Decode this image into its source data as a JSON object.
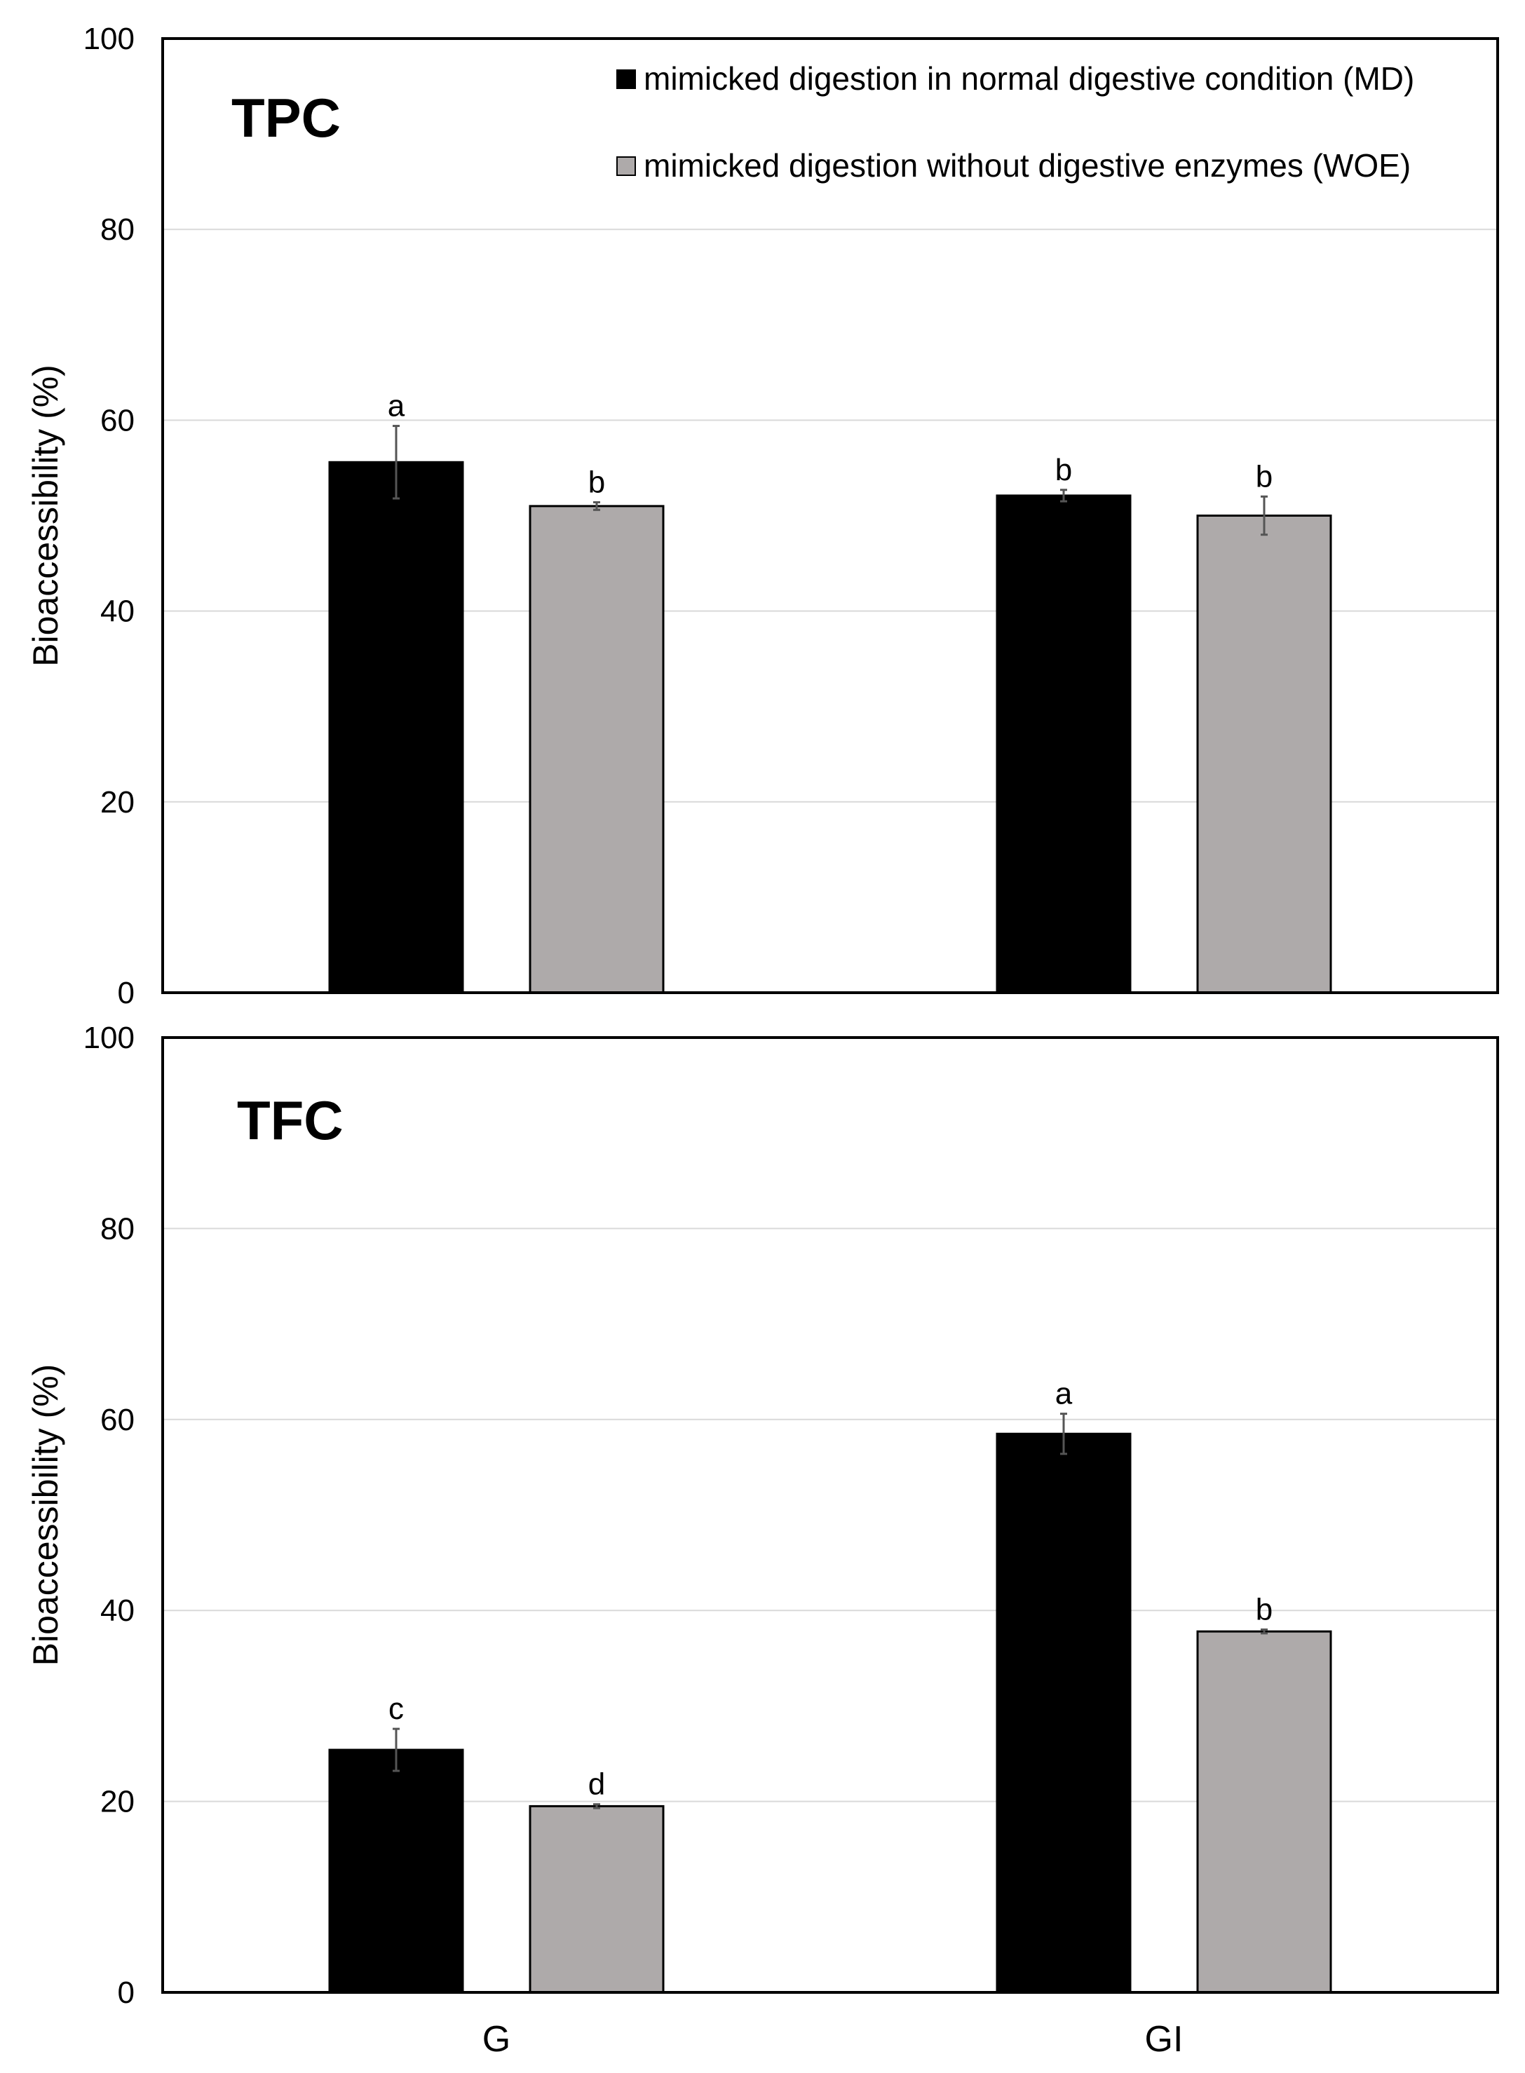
{
  "chart_data": [
    {
      "type": "bar",
      "panel_label": "TPC",
      "categories": [
        "G",
        "GI"
      ],
      "series": [
        {
          "name": "mimicked digestion in normal digestive condition (MD)",
          "color": "#000000",
          "values": [
            55.6,
            52.1
          ],
          "errors": [
            3.8,
            0.6
          ],
          "letters": [
            "a",
            "b"
          ]
        },
        {
          "name": "mimicked digestion without digestive enzymes (WOE)",
          "color": "#aeaaaa",
          "values": [
            51.0,
            50.0
          ],
          "errors": [
            0.4,
            2.0
          ],
          "letters": [
            "b",
            "b"
          ]
        }
      ],
      "ylabel": "Bioaccessibility (%)",
      "ylim": [
        0,
        100
      ],
      "yticks": [
        0,
        20,
        40,
        60,
        80,
        100
      ],
      "grid": true,
      "legend": "top-right"
    },
    {
      "type": "bar",
      "panel_label": "TFC",
      "categories": [
        "G",
        "GI"
      ],
      "series": [
        {
          "name": "mimicked digestion in normal digestive condition (MD)",
          "color": "#000000",
          "values": [
            25.4,
            58.5
          ],
          "errors": [
            2.2,
            2.1
          ],
          "letters": [
            "c",
            "a"
          ]
        },
        {
          "name": "mimicked digestion without digestive enzymes (WOE)",
          "color": "#aeaaaa",
          "values": [
            19.5,
            37.8
          ],
          "errors": [
            0.2,
            0.2
          ],
          "letters": [
            "d",
            "b"
          ]
        }
      ],
      "ylabel": "Bioaccessibility (%)",
      "ylim": [
        0,
        100
      ],
      "yticks": [
        0,
        20,
        40,
        60,
        80,
        100
      ],
      "grid": true,
      "legend": "none"
    }
  ],
  "x_categories_label": [
    "G",
    "GI"
  ]
}
